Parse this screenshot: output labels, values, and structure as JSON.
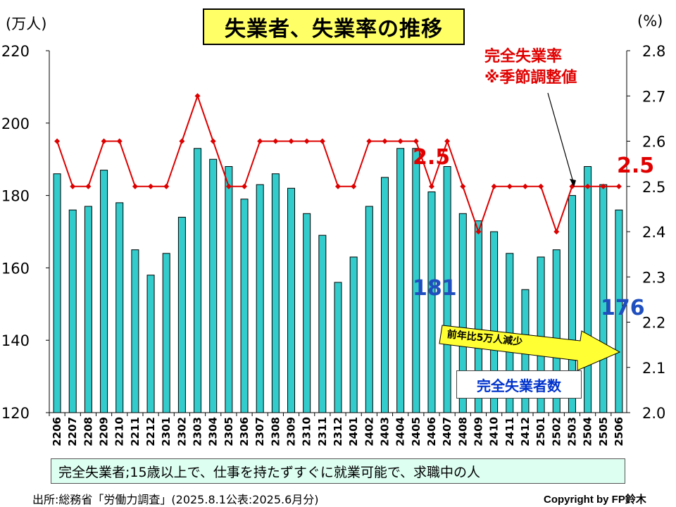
{
  "title": "失業者、失業率の推移",
  "unit_left": "(万人)",
  "unit_right": "(%)",
  "rate_label": [
    "完全失業率",
    "※季節調整値"
  ],
  "series_box_label": "完全失業者数",
  "arrow_label": "前年比5万人減少",
  "highlight_values": {
    "unemployed_2406": "181",
    "unemployed_2506": "176",
    "rate_2406": "2.5",
    "rate_2506": "2.5"
  },
  "note": "完全失業者;15歳以上で、仕事を持たずすぐに就業可能で、求職中の人",
  "source": "出所:総務省「労働力調査」(2025.8.1公表:2025.6月分)",
  "copyright": "Copyright by FP鈴木",
  "colors": {
    "bar": "#33cccc",
    "line": "#dd0000",
    "label_blue": "#1f4fbf",
    "label_red": "#e00000",
    "arrow_fill": "#ffff33"
  },
  "chart_data": {
    "type": "bar",
    "categories": [
      "2206",
      "2207",
      "2208",
      "2209",
      "2210",
      "2211",
      "2212",
      "2301",
      "2302",
      "2303",
      "2304",
      "2305",
      "2306",
      "2307",
      "2308",
      "2309",
      "2310",
      "2311",
      "2312",
      "2401",
      "2402",
      "2403",
      "2404",
      "2405",
      "2406",
      "2407",
      "2408",
      "2409",
      "2410",
      "2411",
      "2412",
      "2501",
      "2502",
      "2503",
      "2504",
      "2505",
      "2506"
    ],
    "series": [
      {
        "name": "完全失業者数",
        "type": "bar",
        "axis": "left",
        "values": [
          186,
          176,
          177,
          187,
          178,
          165,
          158,
          164,
          174,
          193,
          190,
          188,
          179,
          183,
          186,
          182,
          175,
          169,
          156,
          163,
          177,
          185,
          193,
          193,
          181,
          188,
          175,
          173,
          170,
          164,
          154,
          163,
          165,
          180,
          188,
          183,
          176
        ]
      },
      {
        "name": "完全失業率",
        "type": "line",
        "axis": "right",
        "values": [
          2.6,
          2.5,
          2.5,
          2.6,
          2.6,
          2.5,
          2.5,
          2.5,
          2.6,
          2.7,
          2.6,
          2.5,
          2.5,
          2.6,
          2.6,
          2.6,
          2.6,
          2.6,
          2.5,
          2.5,
          2.6,
          2.6,
          2.6,
          2.6,
          2.5,
          2.6,
          2.5,
          2.4,
          2.5,
          2.5,
          2.5,
          2.5,
          2.4,
          2.5,
          2.5,
          2.5,
          2.5
        ]
      }
    ],
    "y_left": {
      "min": 120,
      "max": 220,
      "ticks": [
        "120",
        "140",
        "160",
        "180",
        "200",
        "220"
      ]
    },
    "y_right": {
      "min": 2.0,
      "max": 2.8,
      "ticks": [
        "2.0",
        "2.1",
        "2.2",
        "2.3",
        "2.4",
        "2.5",
        "2.6",
        "2.7",
        "2.8"
      ]
    },
    "grid": false
  }
}
